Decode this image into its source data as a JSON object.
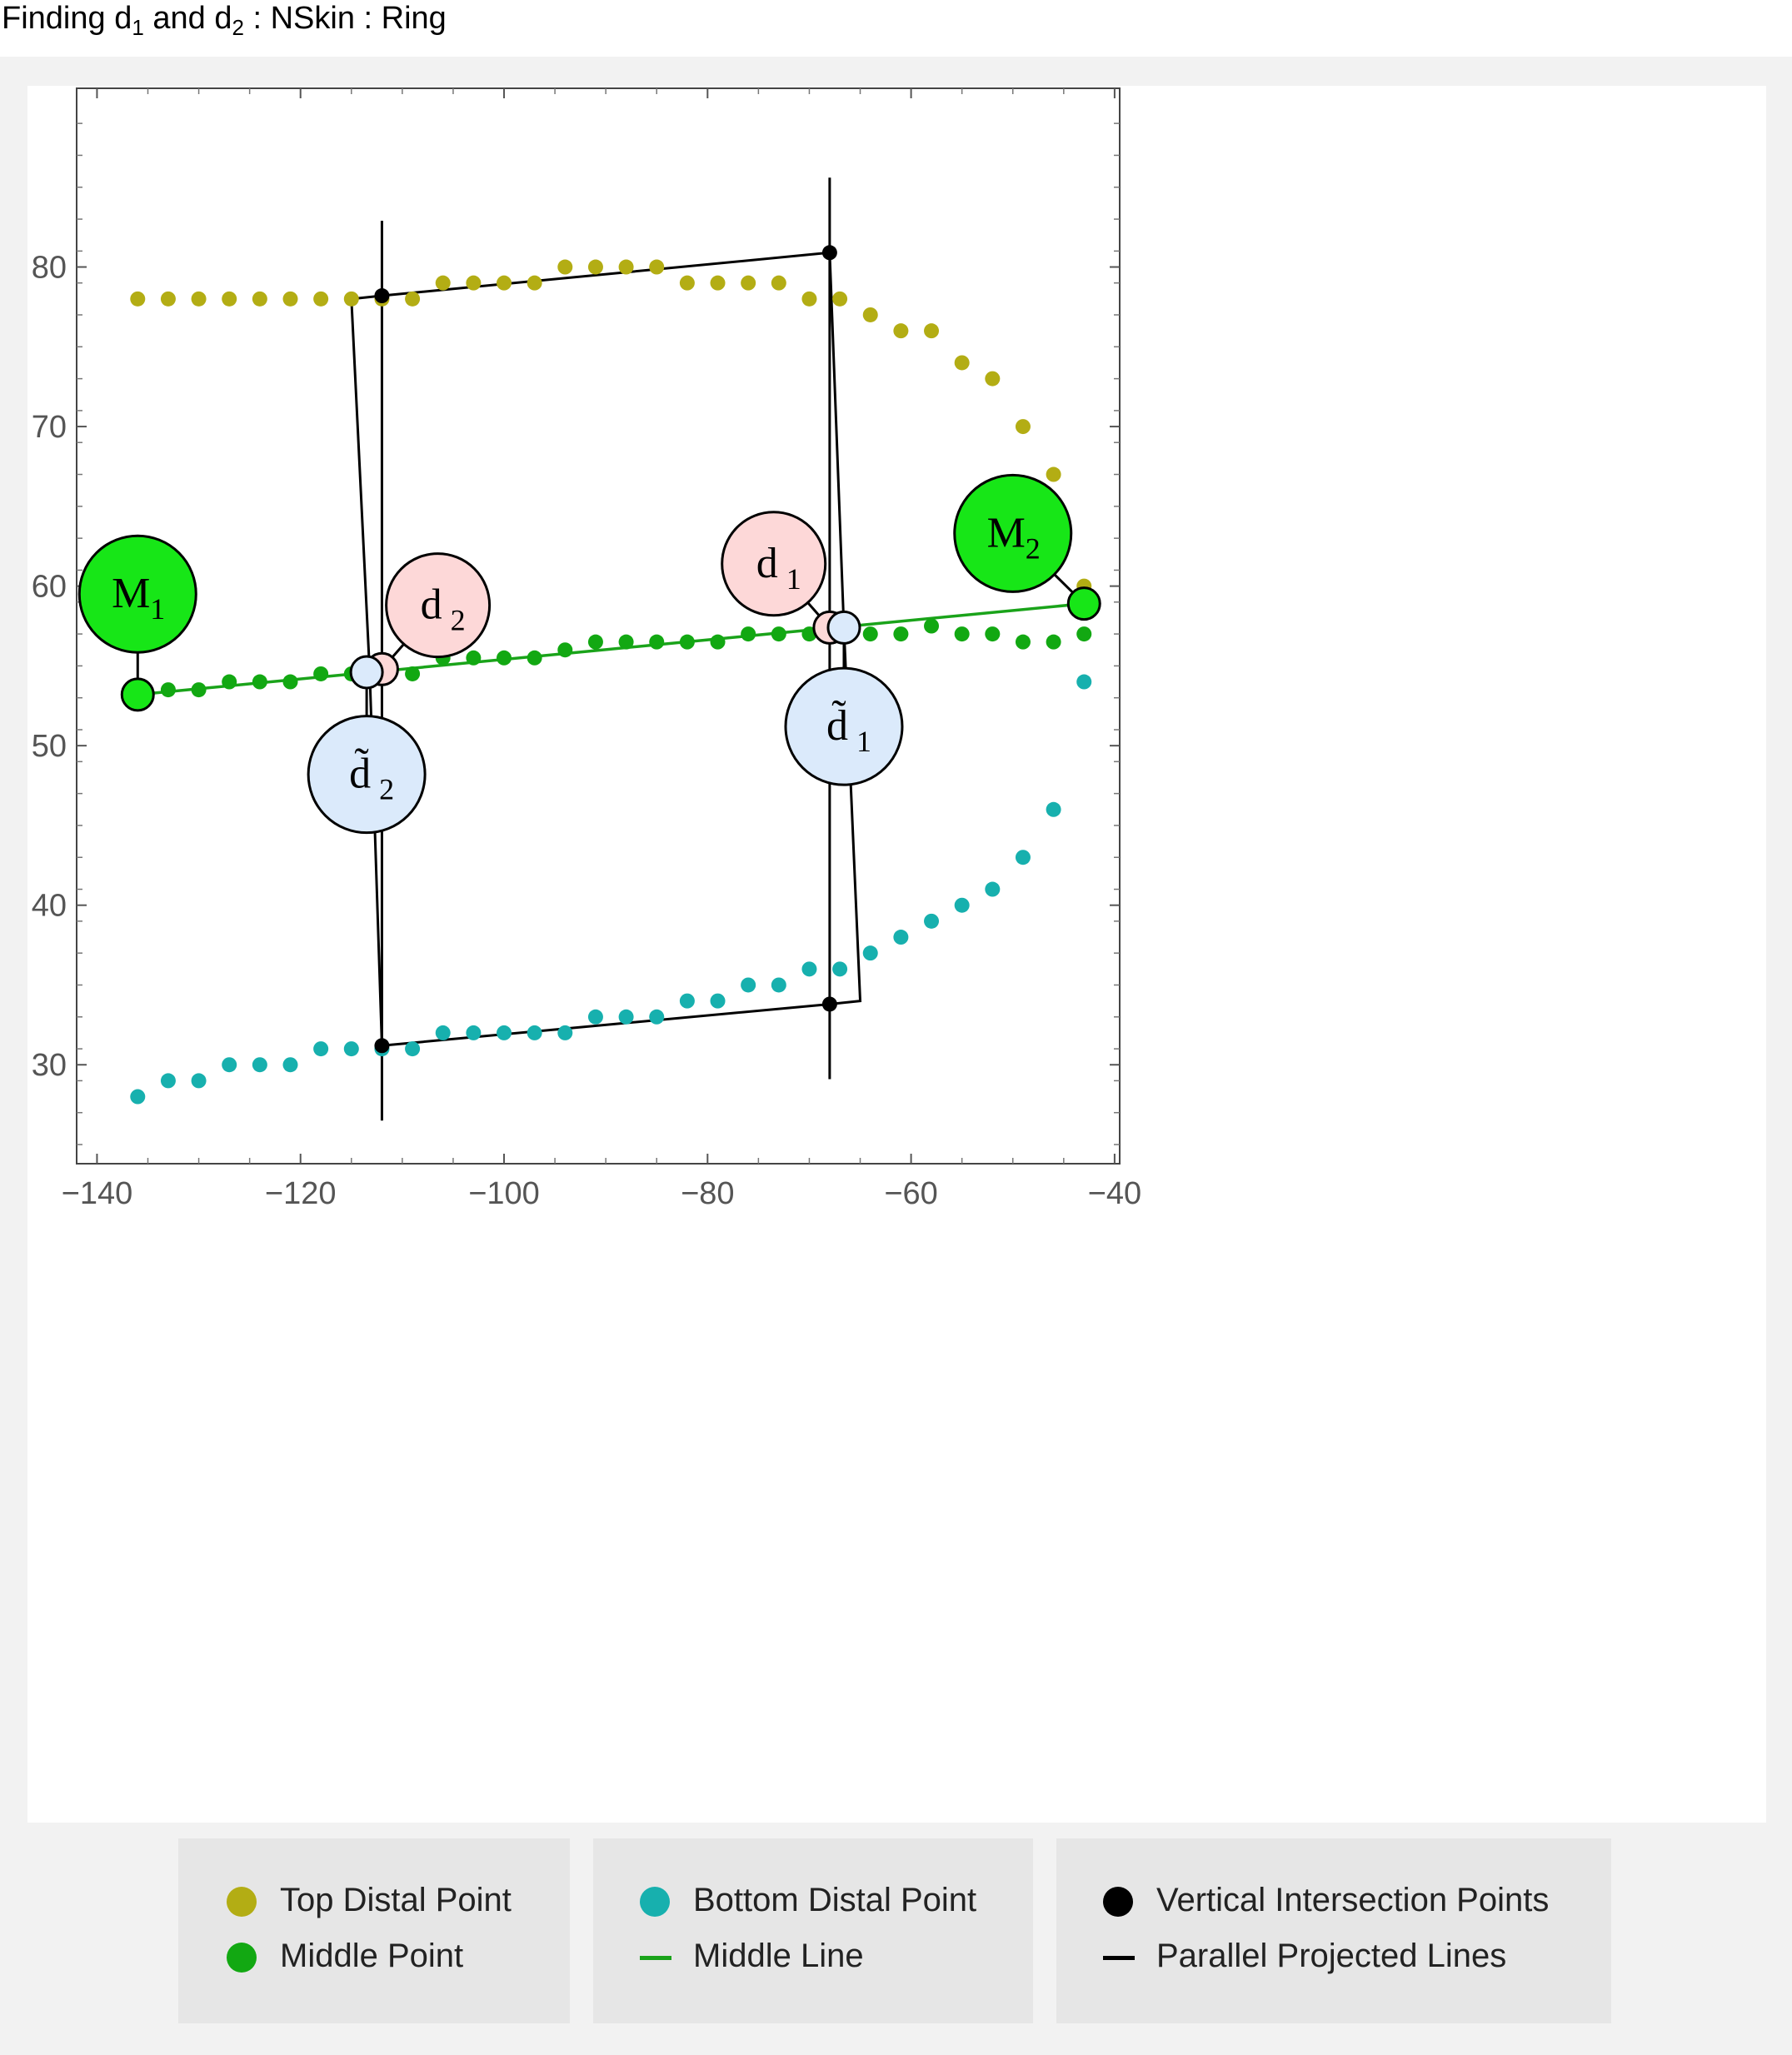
{
  "title": {
    "part1": "Finding d",
    "sub1": "1",
    "part2": " and d",
    "sub2": "2",
    "part3": " : NSkin : Ring"
  },
  "colors": {
    "top": "#b3ad14",
    "middle": "#12a812",
    "bottom": "#17b0ae",
    "black": "#000000",
    "middle_line": "#1aa31a",
    "m_label_fill": "#17e617",
    "d_label_fill": "#fdd8d8",
    "dt_label_fill": "#dbeafb"
  },
  "legend": [
    {
      "label": "Top Distal Point",
      "symbol": "dot",
      "color": "#b3ad14"
    },
    {
      "label": "Middle Point",
      "symbol": "dot",
      "color": "#12a812"
    },
    {
      "label": "Bottom Distal Point",
      "symbol": "dot",
      "color": "#17b0ae"
    },
    {
      "label": "Middle Line",
      "symbol": "line",
      "color": "#1aa31a"
    },
    {
      "label": "Vertical Intersection Points",
      "symbol": "dot",
      "color": "#000000"
    },
    {
      "label": "Parallel Projected Lines",
      "symbol": "line",
      "color": "#000000"
    }
  ],
  "chart_data": {
    "type": "scatter",
    "title": "Finding d1 and d2 : NSkin : Ring",
    "xlim": [
      -142,
      -39.5
    ],
    "ylim": [
      23.8,
      91.2
    ],
    "x_ticks": [
      -140,
      -120,
      -100,
      -80,
      -60,
      -40
    ],
    "x_tick_labels": [
      "−140",
      "−120",
      "−100",
      "−80",
      "−60",
      "−40"
    ],
    "y_ticks": [
      30,
      40,
      50,
      60,
      70,
      80
    ],
    "y_tick_labels": [
      "30",
      "40",
      "50",
      "60",
      "70",
      "80"
    ],
    "legend_position": "bottom",
    "series": [
      {
        "name": "Top Distal Point",
        "x": [
          -136,
          -133,
          -130,
          -127,
          -124,
          -121,
          -118,
          -115,
          -112,
          -109,
          -106,
          -103,
          -100,
          -97,
          -94,
          -91,
          -88,
          -85,
          -82,
          -79,
          -76,
          -73,
          -70,
          -67,
          -64,
          -61,
          -58,
          -55,
          -52,
          -49,
          -46,
          -43
        ],
        "y": [
          78,
          78,
          78,
          78,
          78,
          78,
          78,
          78,
          78,
          78,
          79,
          79,
          79,
          79,
          80,
          80,
          80,
          80,
          79,
          79,
          79,
          79,
          78,
          78,
          77,
          76,
          76,
          74,
          73,
          70,
          67,
          60
        ]
      },
      {
        "name": "Middle Point",
        "x": [
          -133,
          -130,
          -127,
          -124,
          -121,
          -118,
          -115,
          -109,
          -106,
          -103,
          -100,
          -97,
          -94,
          -91,
          -88,
          -85,
          -82,
          -79,
          -76,
          -73,
          -70,
          -64,
          -61,
          -58,
          -55,
          -52,
          -49,
          -46,
          -43
        ],
        "y": [
          53.5,
          53.5,
          54,
          54,
          54,
          54.5,
          54.5,
          54.5,
          55.5,
          55.5,
          55.5,
          55.5,
          56,
          56.5,
          56.5,
          56.5,
          56.5,
          56.5,
          57,
          57,
          57,
          57,
          57,
          57.5,
          57,
          57,
          56.5,
          56.5,
          57
        ]
      },
      {
        "name": "Bottom Distal Point",
        "x": [
          -136,
          -133,
          -130,
          -127,
          -124,
          -121,
          -118,
          -115,
          -112,
          -109,
          -106,
          -103,
          -100,
          -97,
          -94,
          -91,
          -88,
          -85,
          -82,
          -79,
          -76,
          -73,
          -70,
          -67,
          -64,
          -61,
          -58,
          -55,
          -52,
          -49,
          -46,
          -43
        ],
        "y": [
          28,
          29,
          29,
          30,
          30,
          30,
          31,
          31,
          31,
          31,
          32,
          32,
          32,
          32,
          32,
          33,
          33,
          33,
          34,
          34,
          35,
          35,
          36,
          36,
          37,
          38,
          39,
          40,
          41,
          43,
          46,
          54
        ]
      },
      {
        "name": "Middle Line",
        "x": [
          -136,
          -43
        ],
        "y": [
          53.2,
          58.9
        ]
      },
      {
        "name": "Vertical Intersection Points",
        "x": [
          -112,
          -68,
          -112,
          -68
        ],
        "y": [
          78.2,
          80.9,
          31.2,
          33.8
        ]
      },
      {
        "name": "Parallel Projected Lines",
        "segments": [
          [
            [
              -115,
              78
            ],
            [
              -112,
              78.2
            ],
            [
              -68,
              80.9
            ]
          ],
          [
            [
              -115,
              78
            ],
            [
              -113.2,
              54.6
            ],
            [
              -112,
              31.2
            ],
            [
              -68,
              33.8
            ],
            [
              -65,
              34
            ],
            [
              -66.6,
              57.4
            ],
            [
              -68,
              80.9
            ]
          ],
          [
            [
              -112,
              82.9
            ],
            [
              -112,
              26.5
            ]
          ],
          [
            [
              -68,
              85.6
            ],
            [
              -68,
              29.1
            ]
          ]
        ]
      }
    ],
    "markers": [
      {
        "id": "M1",
        "label": "M",
        "sub": "1",
        "x": -136,
        "y": 53.2,
        "label_x": -136,
        "label_y": 59.5,
        "fill": "#17e617",
        "size": "large"
      },
      {
        "id": "M2",
        "label": "M",
        "sub": "2",
        "x": -43,
        "y": 58.9,
        "label_x": -50,
        "label_y": 63.3,
        "fill": "#17e617",
        "size": "large"
      },
      {
        "id": "d1",
        "label": "d",
        "sub": "1",
        "x": -68,
        "y": 57.4,
        "label_x": -73.5,
        "label_y": 61.4,
        "fill": "#fdd8d8",
        "size": "medium"
      },
      {
        "id": "d2",
        "label": "d",
        "sub": "2",
        "x": -112,
        "y": 54.8,
        "label_x": -106.5,
        "label_y": 58.8,
        "fill": "#fdd8d8",
        "size": "medium"
      },
      {
        "id": "dt1",
        "label": "d̃",
        "sub": "1",
        "x": -66.6,
        "y": 57.4,
        "label_x": -66.6,
        "label_y": 51.2,
        "fill": "#dbeafb",
        "size": "large"
      },
      {
        "id": "dt2",
        "label": "d̃",
        "sub": "2",
        "x": -113.5,
        "y": 54.6,
        "label_x": -113.5,
        "label_y": 48.2,
        "fill": "#dbeafb",
        "size": "large"
      }
    ]
  }
}
